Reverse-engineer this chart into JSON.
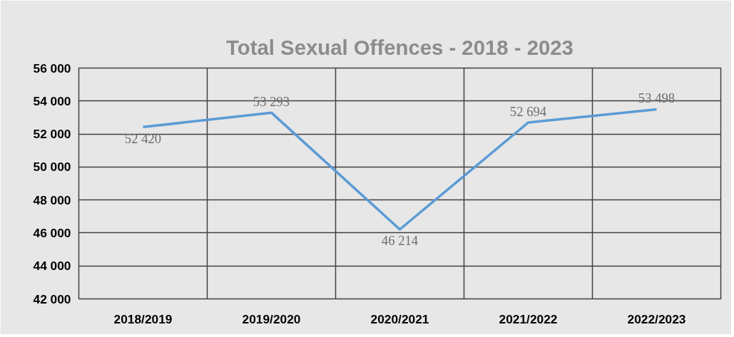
{
  "chart_data": {
    "type": "line",
    "title": "Total Sexual Offences - 2018 - 2023",
    "categories": [
      "2018/2019",
      "2019/2020",
      "2020/2021",
      "2021/2022",
      "2022/2023"
    ],
    "series": [
      {
        "color": "#5b9bd5",
        "values": [
          52420,
          53293,
          46214,
          52694,
          53498
        ],
        "value_labels": [
          "52 420",
          "53 293",
          "46 214",
          "52 694",
          "53 498"
        ]
      }
    ],
    "ylim": [
      42000,
      56000
    ],
    "yticks": [
      {
        "value": 42000,
        "label": "42 000"
      },
      {
        "value": 44000,
        "label": "44 000"
      },
      {
        "value": 46000,
        "label": "46 000"
      },
      {
        "value": 48000,
        "label": "48 000"
      },
      {
        "value": 50000,
        "label": "50 000"
      },
      {
        "value": 52000,
        "label": "52 000"
      },
      {
        "value": 54000,
        "label": "54 000"
      },
      {
        "value": 56000,
        "label": "56 000"
      }
    ],
    "grid": true,
    "marker": "none",
    "line_style": "solid"
  }
}
